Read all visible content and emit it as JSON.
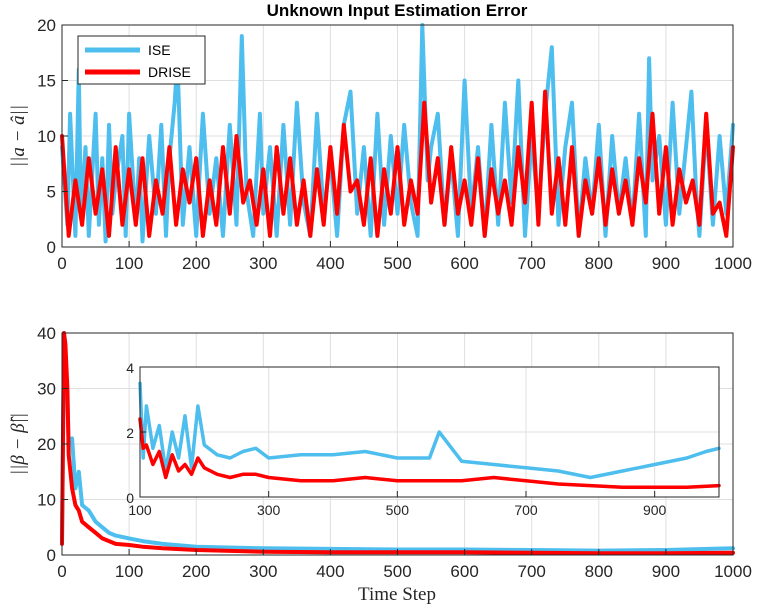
{
  "colors": {
    "ise": "#4DBEEE",
    "drise": "#FF0000",
    "axis": "#262626",
    "grid": "#dfdfdf"
  },
  "chart_data": [
    {
      "type": "line",
      "title": "Unknown Input Estimation Error",
      "xlabel": "",
      "ylabel": "||a − â||",
      "xlim": [
        0,
        1000
      ],
      "ylim": [
        0,
        20
      ],
      "xticks": [
        "0",
        "100",
        "200",
        "300",
        "400",
        "500",
        "600",
        "700",
        "800",
        "900",
        "1000"
      ],
      "yticks": [
        "0",
        "5",
        "10",
        "15",
        "20"
      ],
      "legend": {
        "position": "top-left",
        "entries": [
          "ISE",
          "DRISE"
        ]
      },
      "grid": true,
      "series": [
        {
          "name": "ISE",
          "x": [
            0,
            8,
            12,
            20,
            25,
            28,
            35,
            40,
            50,
            55,
            60,
            65,
            70,
            75,
            80,
            90,
            95,
            100,
            110,
            115,
            120,
            130,
            140,
            148,
            155,
            160,
            168,
            172,
            180,
            190,
            200,
            210,
            220,
            230,
            240,
            250,
            260,
            268,
            275,
            285,
            295,
            300,
            310,
            320,
            330,
            340,
            350,
            360,
            370,
            380,
            390,
            400,
            410,
            420,
            430,
            440,
            450,
            460,
            470,
            480,
            490,
            500,
            510,
            520,
            530,
            537,
            545,
            550,
            560,
            570,
            580,
            590,
            600,
            610,
            620,
            630,
            640,
            650,
            660,
            670,
            680,
            690,
            700,
            710,
            720,
            730,
            740,
            750,
            760,
            770,
            780,
            790,
            800,
            810,
            820,
            830,
            840,
            850,
            860,
            870,
            875,
            880,
            890,
            900,
            910,
            920,
            930,
            938,
            945,
            950,
            960,
            970,
            980,
            990,
            1000
          ],
          "values": [
            9,
            2,
            12,
            1,
            16,
            3,
            9,
            1,
            12,
            2,
            8,
            0.5,
            11,
            3,
            6,
            10,
            1,
            12,
            2,
            8,
            0.5,
            10,
            3,
            11,
            1,
            8,
            13,
            17,
            2,
            9,
            1,
            12,
            3,
            8,
            1,
            11,
            2,
            19,
            5,
            1,
            12,
            3,
            9,
            1,
            11,
            2,
            13,
            4,
            1,
            12,
            3,
            8,
            1,
            11,
            14,
            3,
            9,
            1,
            12,
            2,
            10,
            3,
            11,
            4,
            1,
            20,
            6,
            9,
            12,
            2,
            8,
            1,
            15,
            3,
            9,
            1,
            11,
            2,
            13,
            4,
            15,
            1,
            10,
            3,
            12,
            18,
            2,
            9,
            13,
            1,
            8,
            3,
            11,
            1,
            10,
            3,
            8,
            2,
            12,
            1,
            17,
            6,
            10,
            2,
            13,
            3,
            9,
            14,
            5,
            1,
            11,
            2,
            10,
            3,
            11
          ]
        },
        {
          "name": "DRISE",
          "x": [
            0,
            10,
            20,
            30,
            40,
            50,
            60,
            70,
            80,
            90,
            100,
            110,
            120,
            130,
            140,
            150,
            160,
            170,
            180,
            190,
            200,
            210,
            220,
            230,
            240,
            250,
            260,
            270,
            280,
            290,
            300,
            310,
            320,
            330,
            340,
            350,
            360,
            370,
            380,
            390,
            400,
            410,
            420,
            430,
            440,
            450,
            460,
            470,
            480,
            490,
            500,
            510,
            520,
            530,
            540,
            550,
            560,
            570,
            580,
            590,
            600,
            610,
            620,
            630,
            640,
            650,
            660,
            670,
            680,
            690,
            700,
            710,
            720,
            730,
            740,
            750,
            760,
            770,
            780,
            790,
            800,
            810,
            820,
            830,
            840,
            850,
            860,
            870,
            880,
            890,
            900,
            910,
            920,
            930,
            940,
            950,
            960,
            970,
            980,
            990,
            1000
          ],
          "values": [
            10,
            1,
            6,
            2,
            8,
            3,
            7,
            1,
            9,
            2,
            7,
            2,
            8,
            1,
            6,
            3,
            9,
            2,
            7,
            4,
            8,
            1,
            6,
            2,
            9,
            3,
            10,
            4,
            6,
            2,
            7,
            1,
            9,
            3,
            8,
            2,
            6,
            1,
            7,
            2,
            9,
            3,
            11,
            5,
            6,
            2,
            8,
            1,
            7,
            3,
            9,
            2,
            6,
            3,
            13,
            4,
            8,
            2,
            9,
            3,
            6,
            2,
            8,
            1,
            7,
            3,
            6,
            2,
            9,
            4,
            13,
            2,
            14,
            3,
            8,
            2,
            9,
            1,
            6,
            3,
            8,
            2,
            7,
            3,
            6,
            2,
            8,
            4,
            12,
            3,
            9,
            2,
            7,
            4,
            6,
            2,
            12,
            3,
            4,
            1,
            9
          ]
        }
      ]
    },
    {
      "type": "line",
      "title": "",
      "xlabel": "Time Step",
      "ylabel": "||β − β̂||",
      "xlim": [
        0,
        1000
      ],
      "ylim": [
        0,
        40
      ],
      "xticks": [
        "0",
        "100",
        "200",
        "300",
        "400",
        "500",
        "600",
        "700",
        "800",
        "900",
        "1000"
      ],
      "yticks": [
        "0",
        "10",
        "20",
        "30",
        "40"
      ],
      "grid": true,
      "series": [
        {
          "name": "ISE",
          "x": [
            0,
            3,
            5,
            8,
            10,
            15,
            20,
            25,
            30,
            40,
            50,
            60,
            70,
            80,
            100,
            120,
            150,
            200,
            300,
            400,
            500,
            600,
            700,
            800,
            900,
            1000
          ],
          "values": [
            3,
            40,
            30,
            28,
            20,
            21,
            12,
            15,
            9,
            8,
            6,
            5,
            4,
            3.5,
            3,
            2.5,
            2,
            1.5,
            1.2,
            1.1,
            1,
            1,
            0.9,
            0.8,
            0.9,
            1.2
          ]
        },
        {
          "name": "DRISE",
          "x": [
            0,
            3,
            5,
            8,
            10,
            15,
            20,
            25,
            30,
            40,
            50,
            60,
            70,
            80,
            100,
            120,
            150,
            200,
            300,
            400,
            500,
            600,
            700,
            800,
            900,
            1000
          ],
          "values": [
            2,
            40,
            38,
            30,
            18,
            12,
            9,
            8,
            6,
            5,
            4,
            3,
            2.5,
            2,
            1.8,
            1.5,
            1.2,
            0.9,
            0.6,
            0.5,
            0.5,
            0.5,
            0.4,
            0.3,
            0.3,
            0.4
          ]
        }
      ]
    },
    {
      "type": "line",
      "title": "",
      "xlabel": "",
      "ylabel": "",
      "inset_of": 1,
      "xlim": [
        100,
        1000
      ],
      "ylim": [
        0,
        4
      ],
      "xticks": [
        "100",
        "300",
        "500",
        "700",
        "900"
      ],
      "yticks": [
        "0",
        "2",
        "4"
      ],
      "grid": true,
      "series": [
        {
          "name": "ISE",
          "x": [
            100,
            105,
            110,
            120,
            130,
            140,
            150,
            160,
            170,
            180,
            190,
            200,
            220,
            240,
            260,
            280,
            300,
            350,
            400,
            450,
            500,
            550,
            565,
            600,
            650,
            700,
            750,
            800,
            850,
            900,
            950,
            980,
            1000
          ],
          "values": [
            3.5,
            1.2,
            2.8,
            1.5,
            2.2,
            0.8,
            2,
            1.2,
            2.5,
            0.9,
            2.8,
            1.6,
            1.3,
            1.2,
            1.4,
            1.5,
            1.2,
            1.3,
            1.3,
            1.4,
            1.2,
            1.2,
            2,
            1.1,
            1,
            0.9,
            0.8,
            0.6,
            0.8,
            1,
            1.2,
            1.4,
            1.5
          ]
        },
        {
          "name": "DRISE",
          "x": [
            100,
            105,
            110,
            120,
            130,
            140,
            150,
            160,
            170,
            180,
            190,
            200,
            220,
            240,
            260,
            280,
            300,
            350,
            400,
            450,
            500,
            550,
            600,
            650,
            700,
            750,
            800,
            850,
            900,
            950,
            1000
          ],
          "values": [
            2.4,
            1.5,
            1.6,
            1,
            1.4,
            0.6,
            1.3,
            0.8,
            1,
            0.7,
            1.2,
            0.9,
            0.7,
            0.6,
            0.7,
            0.7,
            0.6,
            0.5,
            0.5,
            0.6,
            0.5,
            0.5,
            0.5,
            0.6,
            0.5,
            0.4,
            0.35,
            0.3,
            0.3,
            0.3,
            0.35
          ]
        }
      ]
    }
  ]
}
